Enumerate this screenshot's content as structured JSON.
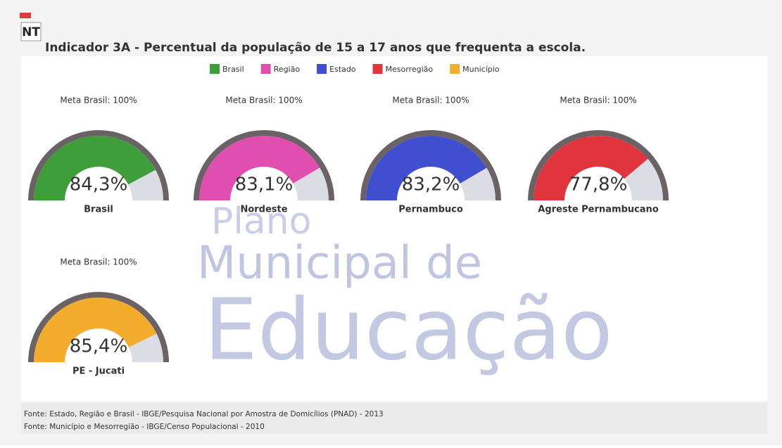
{
  "chart_data": {
    "type": "gauge",
    "logo": "NT",
    "title": "Indicador 3A - Percentual da população de 15 a 17 anos que frequenta a escola.",
    "target_label": "Meta Brasil: 100%",
    "ylim": [
      0,
      100
    ],
    "categories": [
      "Brasil",
      "Nordeste",
      "Pernambuco",
      "Agreste Pernambucano",
      "PE - Jucati"
    ],
    "series": [
      {
        "name": "Brasil",
        "color": "#3e9e3a",
        "values": [
          84.3,
          null,
          null,
          null,
          null
        ],
        "value_labels": [
          "84,3%",
          null,
          null,
          null,
          null
        ]
      },
      {
        "name": "Região",
        "color": "#e04fb0",
        "values": [
          null,
          83.1,
          null,
          null,
          null
        ],
        "value_labels": [
          null,
          "83,1%",
          null,
          null,
          null
        ]
      },
      {
        "name": "Estado",
        "color": "#3f4fcf",
        "values": [
          null,
          null,
          83.2,
          null,
          null
        ],
        "value_labels": [
          null,
          null,
          "83,2%",
          null,
          null
        ]
      },
      {
        "name": "Mesorregião",
        "color": "#e0353d",
        "values": [
          null,
          null,
          null,
          77.8,
          null
        ],
        "value_labels": [
          null,
          null,
          null,
          "77,8%",
          null
        ]
      },
      {
        "name": "Município",
        "color": "#f2ad2c",
        "values": [
          null,
          null,
          null,
          null,
          85.4
        ],
        "value_labels": [
          null,
          null,
          null,
          null,
          "85,4%"
        ]
      }
    ],
    "watermark": [
      "Plano",
      "Municipal de",
      "Educação"
    ],
    "notes": [
      "Fonte: Estado, Região e Brasil - IBGE/Pesquisa Nacional por Amostra de Domicílios (PNAD) - 2013",
      "Fonte: Município e Mesorregião - IBGE/Censo Populacional - 2010"
    ]
  }
}
